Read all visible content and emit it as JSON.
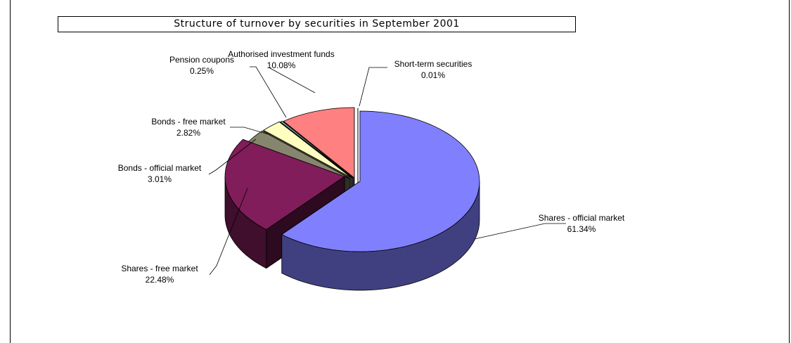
{
  "chart_data": {
    "type": "pie",
    "title": "Structure of turnover by securities in September 2001",
    "slices": [
      {
        "label": "Shares - official market",
        "value": 61.34,
        "pct_label": "61.34%",
        "color": "#8080ff"
      },
      {
        "label": "Shares - free market",
        "value": 22.48,
        "pct_label": "22.48%",
        "color": "#801d5a"
      },
      {
        "label": "Bonds - official market",
        "value": 3.01,
        "pct_label": "3.01%",
        "color": "#86866e"
      },
      {
        "label": "Bonds - free market",
        "value": 2.82,
        "pct_label": "2.82%",
        "color": "#ffffc0"
      },
      {
        "label": "Pension coupons",
        "value": 0.25,
        "pct_label": "0.25%",
        "color": "#a0e0e0"
      },
      {
        "label": "Authorised investment funds",
        "value": 10.08,
        "pct_label": "10.08%",
        "color": "#ff8080"
      },
      {
        "label": "Short-term securities",
        "value": 0.01,
        "pct_label": "0.01%",
        "color": "#c0c0ff"
      }
    ],
    "style": "3d-exploded",
    "legend": "none"
  }
}
